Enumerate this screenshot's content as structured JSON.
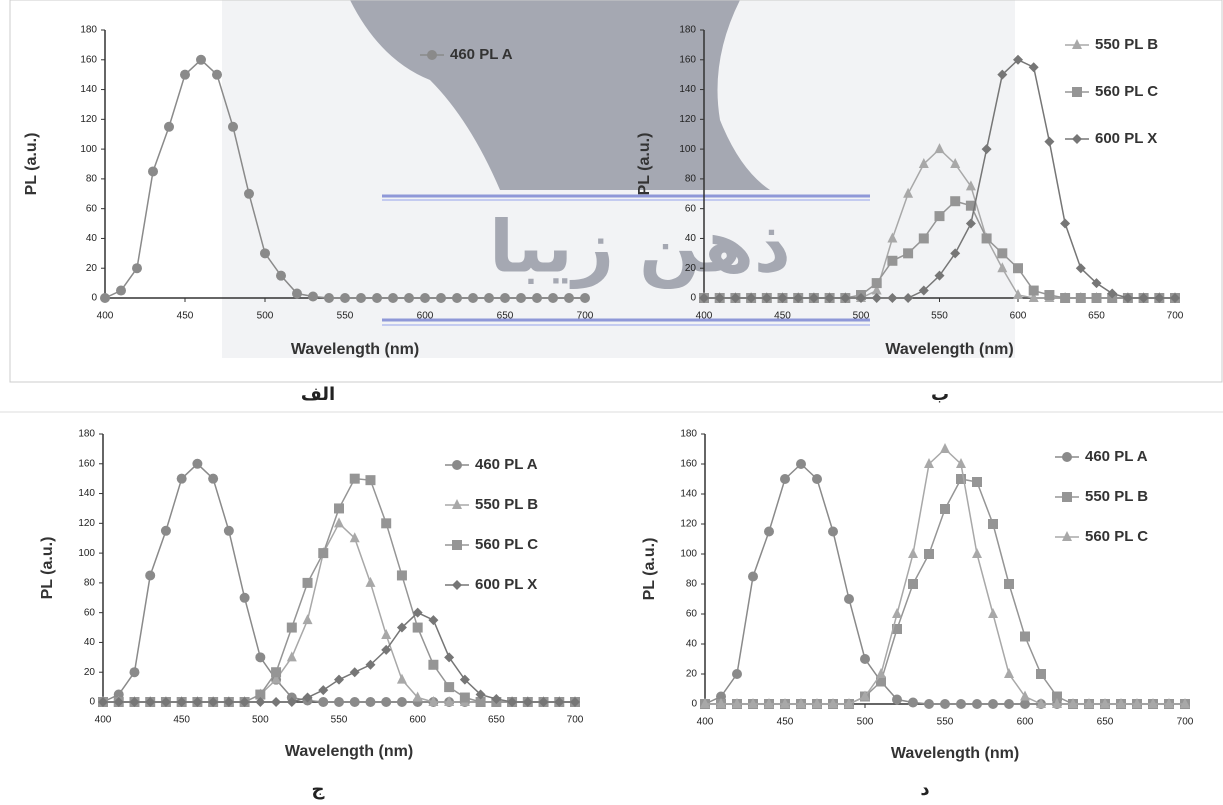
{
  "watermark": "ذهن زیبا",
  "chart_data": [
    {
      "type": "line",
      "caption": "الف",
      "x_label": "Wavelength (nm)",
      "y_label": "PL (a.u.)",
      "x": [
        400,
        410,
        420,
        430,
        440,
        450,
        460,
        470,
        480,
        490,
        500,
        510,
        520,
        530,
        540,
        550,
        560,
        570,
        580,
        590,
        600,
        610,
        620,
        630,
        640,
        650,
        660,
        670,
        680,
        690,
        700
      ],
      "xlim": [
        400,
        700
      ],
      "xticks": [
        400,
        450,
        500,
        550,
        600,
        650,
        700
      ],
      "ylim": [
        0,
        180
      ],
      "yticks": [
        0,
        20,
        40,
        60,
        80,
        100,
        120,
        140,
        160,
        180
      ],
      "series": [
        {
          "name": "460 PL A",
          "color": "#8a8a8a",
          "marker": "circle",
          "values": [
            0,
            5,
            20,
            85,
            115,
            150,
            160,
            150,
            115,
            70,
            30,
            15,
            3,
            1,
            0,
            0,
            0,
            0,
            0,
            0,
            0,
            0,
            0,
            0,
            0,
            0,
            0,
            0,
            0,
            0,
            0
          ]
        }
      ]
    },
    {
      "type": "line",
      "caption": "ب",
      "x_label": "Wavelength (nm)",
      "y_label": "PL (a.u.)",
      "x": [
        400,
        410,
        420,
        430,
        440,
        450,
        460,
        470,
        480,
        490,
        500,
        510,
        520,
        530,
        540,
        550,
        560,
        570,
        580,
        590,
        600,
        610,
        620,
        630,
        640,
        650,
        660,
        670,
        680,
        690,
        700
      ],
      "xlim": [
        400,
        700
      ],
      "xticks": [
        400,
        450,
        500,
        550,
        600,
        650,
        700
      ],
      "ylim": [
        0,
        180
      ],
      "yticks": [
        0,
        20,
        40,
        60,
        80,
        100,
        120,
        140,
        160,
        180
      ],
      "series": [
        {
          "name": "550 PL B",
          "color": "#a8a8a8",
          "marker": "triangle",
          "values": [
            0,
            0,
            0,
            0,
            0,
            0,
            0,
            0,
            0,
            0,
            0,
            5,
            40,
            70,
            90,
            100,
            90,
            75,
            40,
            20,
            2,
            0,
            0,
            0,
            0,
            0,
            0,
            0,
            0,
            0,
            0
          ]
        },
        {
          "name": "560 PL C",
          "color": "#959595",
          "marker": "square",
          "values": [
            0,
            0,
            0,
            0,
            0,
            0,
            0,
            0,
            0,
            0,
            2,
            10,
            25,
            30,
            40,
            55,
            65,
            62,
            40,
            30,
            20,
            5,
            2,
            0,
            0,
            0,
            0,
            0,
            0,
            0,
            0
          ]
        },
        {
          "name": "600 PL X",
          "color": "#767676",
          "marker": "diamond",
          "values": [
            0,
            0,
            0,
            0,
            0,
            0,
            0,
            0,
            0,
            0,
            0,
            0,
            0,
            0,
            5,
            15,
            30,
            50,
            100,
            150,
            160,
            155,
            105,
            50,
            20,
            10,
            3,
            0,
            0,
            0,
            0
          ]
        }
      ]
    },
    {
      "type": "line",
      "caption": "ج",
      "x_label": "Wavelength (nm)",
      "y_label": "PL (a.u.)",
      "x": [
        400,
        410,
        420,
        430,
        440,
        450,
        460,
        470,
        480,
        490,
        500,
        510,
        520,
        530,
        540,
        550,
        560,
        570,
        580,
        590,
        600,
        610,
        620,
        630,
        640,
        650,
        660,
        670,
        680,
        690,
        700
      ],
      "xlim": [
        400,
        700
      ],
      "xticks": [
        400,
        450,
        500,
        550,
        600,
        650,
        700
      ],
      "ylim": [
        0,
        180
      ],
      "yticks": [
        0,
        20,
        40,
        60,
        80,
        100,
        120,
        140,
        160,
        180
      ],
      "series": [
        {
          "name": "460 PL A",
          "color": "#8a8a8a",
          "marker": "circle",
          "values": [
            0,
            5,
            20,
            85,
            115,
            150,
            160,
            150,
            115,
            70,
            30,
            15,
            3,
            1,
            0,
            0,
            0,
            0,
            0,
            0,
            0,
            0,
            0,
            0,
            0,
            0,
            0,
            0,
            0,
            0,
            0
          ]
        },
        {
          "name": "550 PL B",
          "color": "#a8a8a8",
          "marker": "triangle",
          "values": [
            0,
            0,
            0,
            0,
            0,
            0,
            0,
            0,
            0,
            0,
            5,
            15,
            30,
            55,
            100,
            120,
            110,
            80,
            45,
            15,
            3,
            0,
            0,
            0,
            0,
            0,
            0,
            0,
            0,
            0,
            0
          ]
        },
        {
          "name": "560 PL C",
          "color": "#959595",
          "marker": "square",
          "values": [
            0,
            0,
            0,
            0,
            0,
            0,
            0,
            0,
            0,
            0,
            5,
            20,
            50,
            80,
            100,
            130,
            150,
            149,
            120,
            85,
            50,
            25,
            10,
            3,
            0,
            0,
            0,
            0,
            0,
            0,
            0
          ]
        },
        {
          "name": "600 PL X",
          "color": "#767676",
          "marker": "diamond",
          "values": [
            0,
            0,
            0,
            0,
            0,
            0,
            0,
            0,
            0,
            0,
            0,
            0,
            0,
            3,
            8,
            15,
            20,
            25,
            35,
            50,
            60,
            55,
            30,
            15,
            5,
            2,
            0,
            0,
            0,
            0,
            0
          ]
        }
      ]
    },
    {
      "type": "line",
      "caption": "د",
      "x_label": "Wavelength (nm)",
      "y_label": "PL (a.u.)",
      "x": [
        400,
        410,
        420,
        430,
        440,
        450,
        460,
        470,
        480,
        490,
        500,
        510,
        520,
        530,
        540,
        550,
        560,
        570,
        580,
        590,
        600,
        610,
        620,
        630,
        640,
        650,
        660,
        670,
        680,
        690,
        700
      ],
      "xlim": [
        400,
        700
      ],
      "xticks": [
        400,
        450,
        500,
        550,
        600,
        650,
        700
      ],
      "ylim": [
        0,
        180
      ],
      "yticks": [
        0,
        20,
        40,
        60,
        80,
        100,
        120,
        140,
        160,
        180
      ],
      "series": [
        {
          "name": "460 PL A",
          "color": "#8a8a8a",
          "marker": "circle",
          "values": [
            0,
            5,
            20,
            85,
            115,
            150,
            160,
            150,
            115,
            70,
            30,
            15,
            3,
            1,
            0,
            0,
            0,
            0,
            0,
            0,
            0,
            0,
            0,
            0,
            0,
            0,
            0,
            0,
            0,
            0,
            0
          ]
        },
        {
          "name": "550 PL B",
          "color": "#959595",
          "marker": "square",
          "values": [
            0,
            0,
            0,
            0,
            0,
            0,
            0,
            0,
            0,
            0,
            5,
            15,
            50,
            80,
            100,
            130,
            150,
            148,
            120,
            80,
            45,
            20,
            5,
            0,
            0,
            0,
            0,
            0,
            0,
            0,
            0
          ]
        },
        {
          "name": "560 PL C",
          "color": "#a8a8a8",
          "marker": "triangle",
          "values": [
            0,
            0,
            0,
            0,
            0,
            0,
            0,
            0,
            0,
            0,
            5,
            20,
            60,
            100,
            160,
            170,
            160,
            100,
            60,
            20,
            5,
            0,
            0,
            0,
            0,
            0,
            0,
            0,
            0,
            0,
            0
          ]
        }
      ]
    }
  ]
}
